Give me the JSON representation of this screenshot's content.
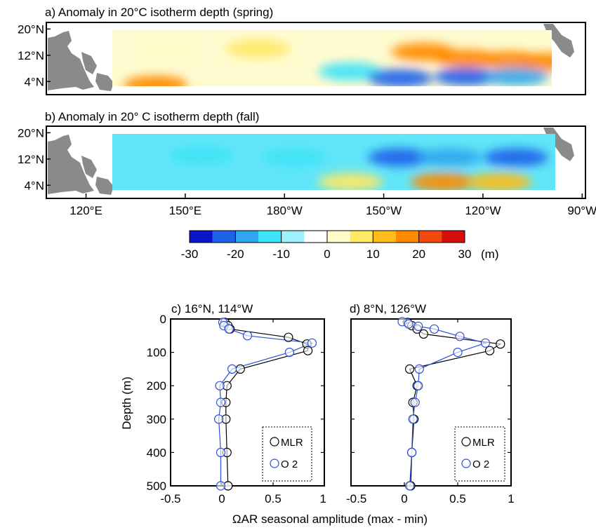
{
  "chart_data": [
    {
      "type": "heatmap",
      "title": "a) Anomaly in 20°C isotherm depth (spring)",
      "panel": "a",
      "ylabels": [
        "20°N",
        "12°N",
        "4°N"
      ],
      "y": [
        20,
        12,
        4
      ],
      "ylim": [
        0,
        22
      ],
      "xlim": [
        108,
        271
      ],
      "data_lon": [
        139,
        265
      ],
      "data_lat": [
        1,
        18
      ],
      "features": [
        {
          "lon": 222,
          "lat": 13,
          "value": 16
        },
        {
          "lon": 235,
          "lat": 11,
          "value": 17
        },
        {
          "lon": 248,
          "lat": 10.5,
          "value": 16
        },
        {
          "lon": 260,
          "lat": 10,
          "value": 17
        },
        {
          "lon": 172,
          "lat": 14,
          "value": 7
        },
        {
          "lon": 145,
          "lat": 14,
          "value": 4
        },
        {
          "lon": 141,
          "lat": 3,
          "value": 17
        },
        {
          "lon": 200,
          "lat": 7,
          "value": -14
        },
        {
          "lon": 215,
          "lat": 5,
          "value": -24
        },
        {
          "lon": 235,
          "lat": 5.5,
          "value": -23
        },
        {
          "lon": 250,
          "lat": 5.5,
          "value": -18
        }
      ]
    },
    {
      "type": "heatmap",
      "title": "b) Anomaly in 20° C isotherm depth (fall)",
      "panel": "b",
      "ylabels": [
        "20°N",
        "12°N",
        "4°N"
      ],
      "y": [
        20,
        12,
        4
      ],
      "ylim": [
        0,
        22
      ],
      "xlim": [
        108,
        271
      ],
      "data_lon": [
        139,
        266
      ],
      "data_lat": [
        1,
        18
      ],
      "features": [
        {
          "lon": 155,
          "lat": 13,
          "value": -12
        },
        {
          "lon": 183,
          "lat": 12.5,
          "value": -13
        },
        {
          "lon": 215,
          "lat": 12.5,
          "value": -21
        },
        {
          "lon": 230,
          "lat": 12.5,
          "value": -20
        },
        {
          "lon": 250,
          "lat": 12.5,
          "value": -22
        },
        {
          "lon": 200,
          "lat": 5,
          "value": 8
        },
        {
          "lon": 228,
          "lat": 5,
          "value": 18
        },
        {
          "lon": 245,
          "lat": 5,
          "value": 11
        }
      ]
    },
    {
      "type": "colorbar",
      "ticks": [
        "-30",
        "-20",
        "-10",
        "0",
        "10",
        "20",
        "30"
      ],
      "range": [
        -30,
        30
      ],
      "unit": "(m)",
      "colors": [
        "#0a14c8",
        "#1e62ea",
        "#2fa6ee",
        "#3fe3f7",
        "#9ef0fa",
        "#ffffff",
        "#fffbc8",
        "#ffe866",
        "#ffbd1a",
        "#ff8a00",
        "#f24a0e",
        "#d50e0e"
      ]
    },
    {
      "type": "line",
      "title": "c) 16°N, 114°W",
      "xlabel": "ΩAR seasonal amplitude (max - min)",
      "ylabel": "Depth (m)",
      "xlim": [
        -0.5,
        1
      ],
      "ylim": [
        500,
        0
      ],
      "xticks": [
        "-0.5",
        "0",
        "0.5",
        "1"
      ],
      "yticks": [
        "0",
        "100",
        "200",
        "300",
        "400",
        "500"
      ],
      "series": [
        {
          "name": "MLR",
          "color": "#000000",
          "x": [
            0.03,
            0.06,
            0.08,
            0.65,
            0.83,
            0.84,
            0.18,
            0.05,
            0.04,
            0.04,
            0.05,
            0.06,
            0.06
          ],
          "y": [
            10,
            20,
            30,
            55,
            75,
            95,
            150,
            200,
            250,
            300,
            400,
            500,
            500
          ]
        },
        {
          "name": "O2",
          "color": "#2a4fd6",
          "x": [
            0.01,
            0.02,
            0.07,
            0.25,
            0.88,
            0.66,
            0.1,
            -0.02,
            -0.01,
            -0.03,
            -0.01,
            -0.01
          ],
          "y": [
            10,
            20,
            30,
            50,
            72,
            100,
            150,
            200,
            250,
            300,
            400,
            500
          ]
        }
      ]
    },
    {
      "type": "line",
      "title": "d) 8°N, 126°W",
      "xlim": [
        -0.5,
        1
      ],
      "ylim": [
        500,
        0
      ],
      "xticks": [
        "-0.5",
        "0",
        "0.5",
        "1"
      ],
      "series": [
        {
          "name": "MLR",
          "color": "#000000",
          "x": [
            0.03,
            0.07,
            0.12,
            0.18,
            0.9,
            0.8,
            0.05,
            0.12,
            0.08,
            0.09,
            0.07,
            0.06
          ],
          "y": [
            10,
            20,
            30,
            45,
            75,
            95,
            150,
            200,
            250,
            300,
            400,
            500
          ]
        },
        {
          "name": "O2",
          "color": "#2a4fd6",
          "x": [
            -0.02,
            0.04,
            0.13,
            0.28,
            0.52,
            0.76,
            0.5,
            0.14,
            0.13,
            0.1,
            0.08,
            0.07,
            0.05
          ],
          "y": [
            8,
            15,
            22,
            30,
            52,
            72,
            100,
            150,
            200,
            250,
            300,
            400,
            500
          ]
        }
      ]
    }
  ],
  "map": {
    "lon_ticks": [
      {
        "lon": 120,
        "label": "120°E"
      },
      {
        "lon": 150,
        "label": "150°E"
      },
      {
        "lon": 180,
        "label": "180°W"
      },
      {
        "lon": 210,
        "label": "150°W"
      },
      {
        "lon": 240,
        "label": "120°W"
      },
      {
        "lon": 270,
        "label": "90°W"
      }
    ],
    "land_color": "#8a8a8a"
  },
  "legend": {
    "mlr": "MLR",
    "o2": "O 2"
  },
  "colors": {
    "mlr": "#000000",
    "o2": "#2a4fd6",
    "land": "#8a8a8a"
  }
}
